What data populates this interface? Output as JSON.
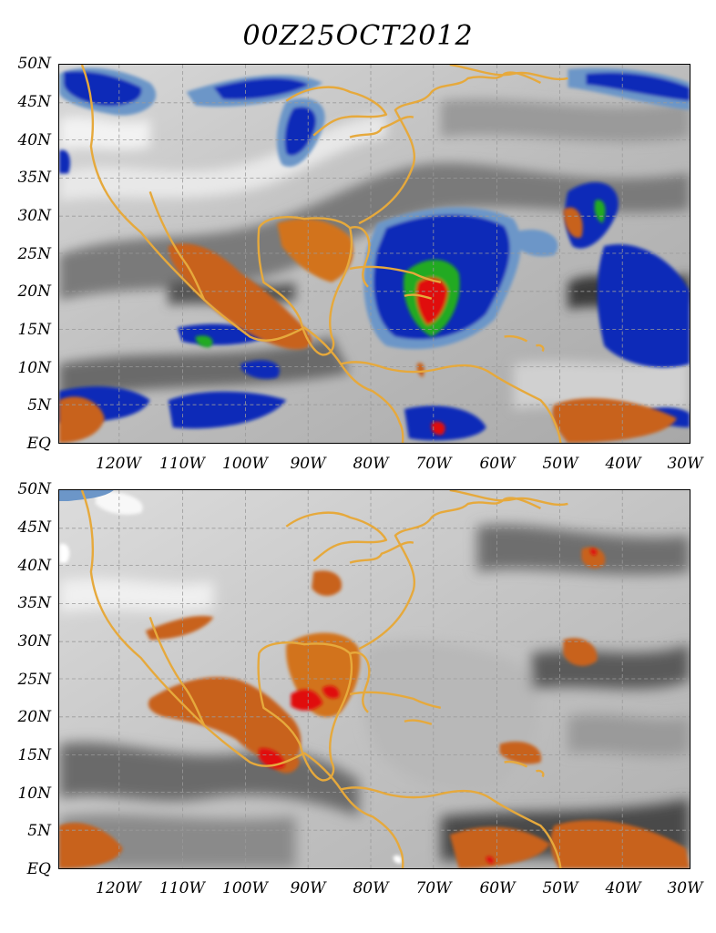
{
  "title": "00Z25OCT2012",
  "y_axis_labels": [
    "50N",
    "45N",
    "40N",
    "35N",
    "30N",
    "25N",
    "20N",
    "15N",
    "10N",
    "5N",
    "EQ"
  ],
  "x_axis_labels": [
    "120W",
    "110W",
    "100W",
    "90W",
    "80W",
    "70W",
    "60W",
    "50W",
    "40W",
    "30W"
  ],
  "colors": {
    "coastline": "#e6a93c",
    "gridline": "#9a9a9a",
    "blue_dark": "#0a2bb8",
    "blue_light": "#6c96c8",
    "green": "#22aa22",
    "orange": "#c8621c",
    "red": "#e01010"
  },
  "panels": [
    {
      "name": "top-panel"
    },
    {
      "name": "bottom-panel"
    }
  ]
}
